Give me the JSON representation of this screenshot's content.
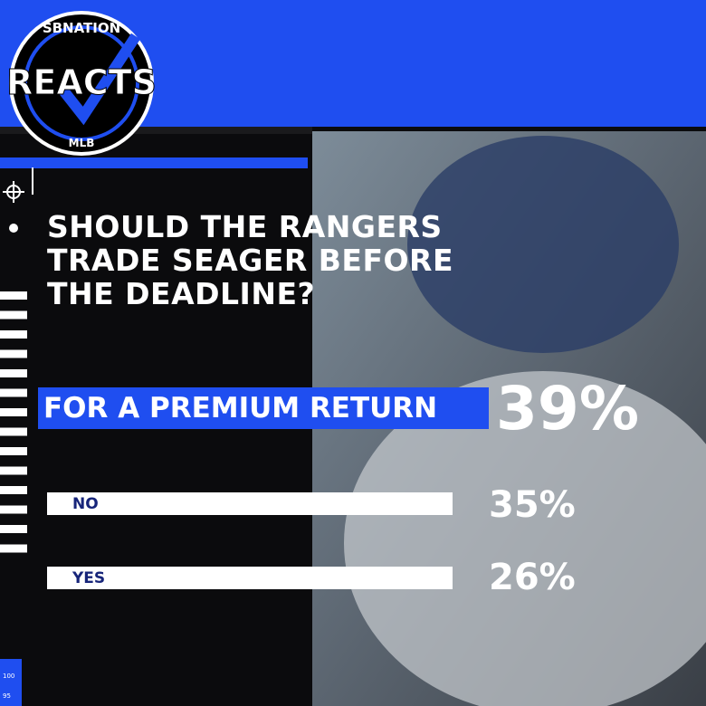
{
  "logo": {
    "top": "SBNATION",
    "main": "REACTS",
    "bottom": "MLB"
  },
  "question_lines": [
    "SHOULD THE RANGERS",
    "TRADE SEAGER BEFORE",
    "THE DEADLINE?"
  ],
  "options": [
    {
      "label": "FOR A PREMIUM RETURN",
      "percent": "39%"
    },
    {
      "label": "NO",
      "percent": "35%"
    },
    {
      "label": "YES",
      "percent": "26%"
    }
  ],
  "scale_labels": [
    "100",
    "95"
  ]
}
